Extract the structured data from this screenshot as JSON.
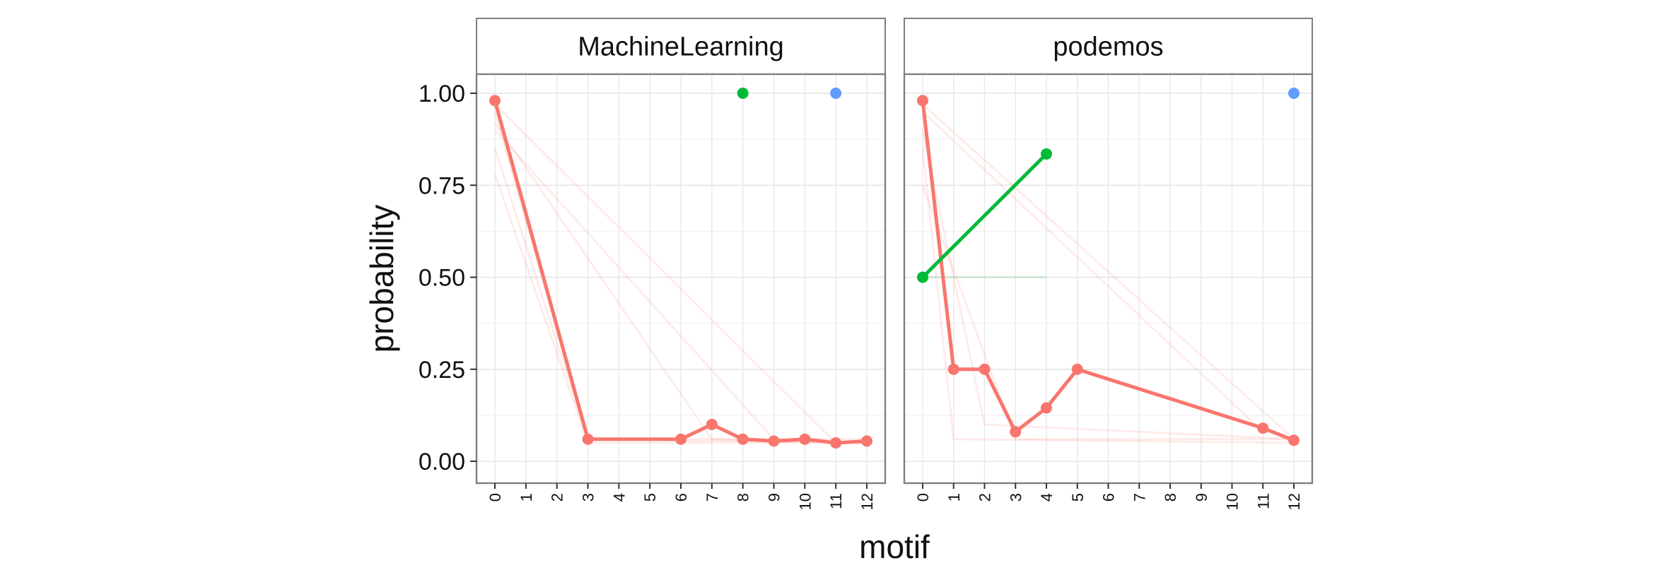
{
  "chart_data": {
    "type": "line",
    "xlabel": "motif",
    "ylabel": "probability",
    "x_ticks": [
      "0",
      "1",
      "2",
      "3",
      "4",
      "5",
      "6",
      "7",
      "8",
      "9",
      "10",
      "11",
      "12"
    ],
    "ylim": [
      0,
      1
    ],
    "y_ticks": [
      "0.00",
      "0.25",
      "0.50",
      "0.75",
      "1.00"
    ],
    "y_tick_values": [
      0,
      0.25,
      0.5,
      0.75,
      1.0
    ],
    "grid": true,
    "legend": "none",
    "colors": {
      "red": "#F8766D",
      "green": "#00BA38",
      "blue": "#619CFF"
    },
    "panels": [
      {
        "name": "MachineLearning",
        "background_lines": [
          {
            "color": "#F8766D",
            "points": [
              [
                0,
                0.95
              ],
              [
                3,
                0.06
              ],
              [
                12,
                0.06
              ]
            ]
          },
          {
            "color": "#F8766D",
            "points": [
              [
                0,
                0.85
              ],
              [
                3,
                0.06
              ],
              [
                12,
                0.05
              ]
            ]
          },
          {
            "color": "#F8766D",
            "points": [
              [
                0,
                0.78
              ],
              [
                3,
                0.05
              ],
              [
                11,
                0.05
              ]
            ]
          },
          {
            "color": "#F8766D",
            "points": [
              [
                0,
                0.92
              ],
              [
                7,
                0.06
              ],
              [
                12,
                0.05
              ]
            ]
          },
          {
            "color": "#F8766D",
            "points": [
              [
                0,
                0.9
              ],
              [
                9,
                0.06
              ],
              [
                12,
                0.05
              ]
            ]
          },
          {
            "color": "#F8766D",
            "points": [
              [
                0,
                0.97
              ],
              [
                11,
                0.05
              ]
            ]
          }
        ],
        "series": [
          {
            "color": "#F8766D",
            "points": [
              [
                0,
                0.98
              ],
              [
                3,
                0.06
              ],
              [
                6,
                0.06
              ],
              [
                7,
                0.1
              ],
              [
                8,
                0.06
              ],
              [
                9,
                0.055
              ],
              [
                10,
                0.06
              ],
              [
                11,
                0.05
              ],
              [
                12,
                0.055
              ]
            ]
          },
          {
            "color": "#00BA38",
            "points": [
              [
                8,
                1.0
              ]
            ]
          },
          {
            "color": "#619CFF",
            "points": [
              [
                11,
                1.0
              ]
            ]
          }
        ]
      },
      {
        "name": "podemos",
        "background_lines": [
          {
            "color": "#F8766D",
            "points": [
              [
                0,
                0.97
              ],
              [
                12,
                0.06
              ]
            ]
          },
          {
            "color": "#F8766D",
            "points": [
              [
                0,
                0.95
              ],
              [
                11,
                0.08
              ]
            ]
          },
          {
            "color": "#F8766D",
            "points": [
              [
                0,
                0.9
              ],
              [
                2,
                0.1
              ],
              [
                12,
                0.06
              ]
            ]
          },
          {
            "color": "#F8766D",
            "points": [
              [
                0,
                0.85
              ],
              [
                1,
                0.06
              ],
              [
                12,
                0.05
              ]
            ]
          },
          {
            "color": "#F8766D",
            "points": [
              [
                0,
                0.75
              ],
              [
                3,
                0.06
              ],
              [
                12,
                0.06
              ]
            ]
          },
          {
            "color": "#00BA38",
            "points": [
              [
                0,
                0.5
              ],
              [
                4,
                0.5
              ]
            ]
          }
        ],
        "series": [
          {
            "color": "#F8766D",
            "points": [
              [
                0,
                0.98
              ],
              [
                1,
                0.25
              ],
              [
                2,
                0.25
              ],
              [
                3,
                0.08
              ],
              [
                4,
                0.145
              ],
              [
                5,
                0.25
              ],
              [
                11,
                0.09
              ],
              [
                12,
                0.057
              ]
            ]
          },
          {
            "color": "#00BA38",
            "points": [
              [
                0,
                0.5
              ],
              [
                4,
                0.835
              ]
            ]
          },
          {
            "color": "#619CFF",
            "points": [
              [
                12,
                1.0
              ]
            ]
          }
        ]
      }
    ]
  }
}
